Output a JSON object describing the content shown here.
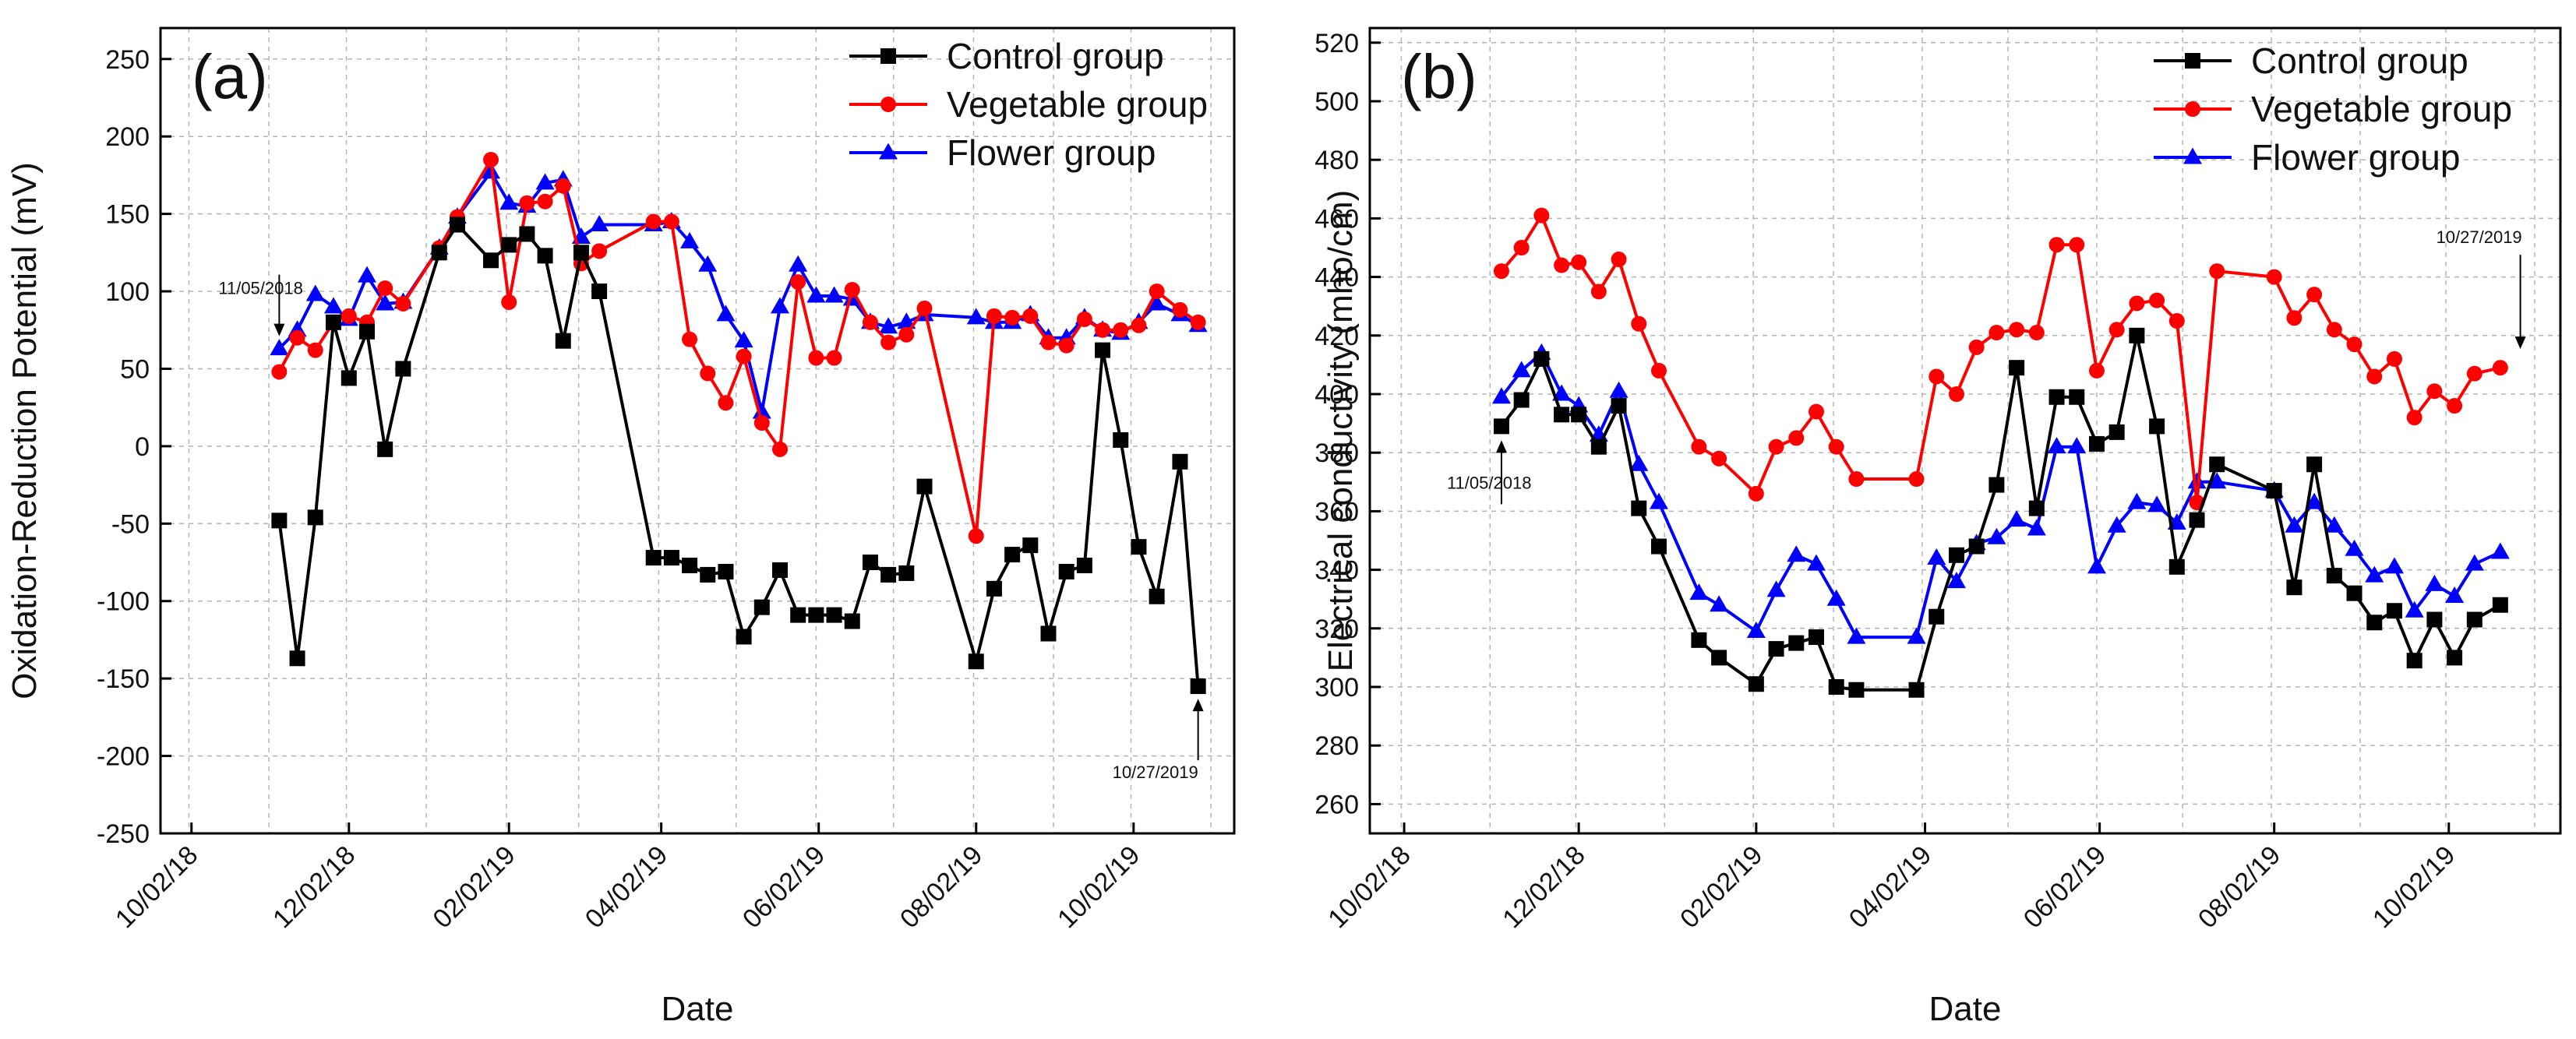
{
  "chart_data": [
    {
      "type": "line",
      "panel_label": "(a)",
      "xlabel": "Date",
      "ylabel": "Oxidation-Reduction Potential (mV)",
      "ylim": [
        -250,
        270
      ],
      "yticks": [
        -250,
        -200,
        -150,
        -100,
        -50,
        0,
        50,
        100,
        150,
        200,
        250
      ],
      "xlim": [
        "2018-09-20",
        "2019-11-10"
      ],
      "xticks": [
        {
          "date": "2018-10-02",
          "label": "10/02/18"
        },
        {
          "date": "2018-12-02",
          "label": "12/02/18"
        },
        {
          "date": "2019-02-02",
          "label": "02/02/19"
        },
        {
          "date": "2019-04-02",
          "label": "04/02/19"
        },
        {
          "date": "2019-06-02",
          "label": "06/02/19"
        },
        {
          "date": "2019-08-02",
          "label": "08/02/19"
        },
        {
          "date": "2019-10-02",
          "label": "10/02/19"
        }
      ],
      "grid": true,
      "legend_position": "top-right",
      "annotations": [
        {
          "text": "11/05/2018",
          "date": "2018-11-05",
          "y": 63
        },
        {
          "text": "10/27/2019",
          "date": "2019-10-27",
          "y": -155
        }
      ],
      "series": [
        {
          "name": "Control group",
          "color": "#000000",
          "marker": "square",
          "x": [
            "2018-11-05",
            "2018-11-12",
            "2018-11-19",
            "2018-11-26",
            "2018-12-02",
            "2018-12-09",
            "2018-12-16",
            "2018-12-23",
            "2019-01-06",
            "2019-01-13",
            "2019-01-26",
            "2019-02-02",
            "2019-02-09",
            "2019-02-16",
            "2019-02-23",
            "2019-03-02",
            "2019-03-09",
            "2019-03-30",
            "2019-04-06",
            "2019-04-13",
            "2019-04-20",
            "2019-04-27",
            "2019-05-04",
            "2019-05-11",
            "2019-05-18",
            "2019-05-25",
            "2019-06-01",
            "2019-06-08",
            "2019-06-15",
            "2019-06-22",
            "2019-06-29",
            "2019-07-06",
            "2019-07-13",
            "2019-08-02",
            "2019-08-09",
            "2019-08-16",
            "2019-08-23",
            "2019-08-30",
            "2019-09-06",
            "2019-09-13",
            "2019-09-20",
            "2019-09-27",
            "2019-10-04",
            "2019-10-11",
            "2019-10-20",
            "2019-10-27"
          ],
          "y": [
            -48,
            -137,
            -46,
            80,
            44,
            74,
            -2,
            50,
            125,
            143,
            120,
            130,
            137,
            123,
            68,
            125,
            100,
            -72,
            -72,
            -77,
            -83,
            -81,
            -123,
            -104,
            -80,
            -109,
            -109,
            -109,
            -113,
            -75,
            -83,
            -82,
            -26,
            -139,
            -92,
            -70,
            -64,
            -121,
            -81,
            -77,
            62,
            4,
            -65,
            -97,
            -10,
            -155
          ]
        },
        {
          "name": "Vegetable group",
          "color": "#ff0000",
          "marker": "circle",
          "x": [
            "2018-11-05",
            "2018-11-12",
            "2018-11-19",
            "2018-11-26",
            "2018-12-02",
            "2018-12-09",
            "2018-12-16",
            "2018-12-23",
            "2019-01-06",
            "2019-01-13",
            "2019-01-26",
            "2019-02-02",
            "2019-02-09",
            "2019-02-16",
            "2019-02-23",
            "2019-03-02",
            "2019-03-09",
            "2019-03-30",
            "2019-04-06",
            "2019-04-13",
            "2019-04-20",
            "2019-04-27",
            "2019-05-04",
            "2019-05-11",
            "2019-05-18",
            "2019-05-25",
            "2019-06-01",
            "2019-06-08",
            "2019-06-15",
            "2019-06-22",
            "2019-06-29",
            "2019-07-06",
            "2019-07-13",
            "2019-08-02",
            "2019-08-09",
            "2019-08-16",
            "2019-08-23",
            "2019-08-30",
            "2019-09-06",
            "2019-09-13",
            "2019-09-20",
            "2019-09-27",
            "2019-10-04",
            "2019-10-11",
            "2019-10-20",
            "2019-10-27"
          ],
          "y": [
            48,
            70,
            62,
            80,
            84,
            80,
            102,
            92,
            128,
            148,
            185,
            93,
            157,
            158,
            168,
            118,
            126,
            145,
            145,
            69,
            47,
            28,
            58,
            15,
            -2,
            106,
            57,
            57,
            101,
            80,
            67,
            72,
            89,
            -58,
            84,
            83,
            84,
            67,
            65,
            82,
            75,
            75,
            78,
            100,
            88,
            80
          ]
        },
        {
          "name": "Flower group",
          "color": "#0000ff",
          "marker": "triangle",
          "x": [
            "2018-11-05",
            "2018-11-12",
            "2018-11-19",
            "2018-11-26",
            "2018-12-02",
            "2018-12-09",
            "2018-12-16",
            "2018-12-23",
            "2019-01-06",
            "2019-01-13",
            "2019-01-26",
            "2019-02-02",
            "2019-02-09",
            "2019-02-16",
            "2019-02-23",
            "2019-03-02",
            "2019-03-09",
            "2019-03-30",
            "2019-04-06",
            "2019-04-13",
            "2019-04-20",
            "2019-04-27",
            "2019-05-04",
            "2019-05-11",
            "2019-05-18",
            "2019-05-25",
            "2019-06-01",
            "2019-06-08",
            "2019-06-15",
            "2019-06-22",
            "2019-06-29",
            "2019-07-06",
            "2019-07-13",
            "2019-08-02",
            "2019-08-09",
            "2019-08-16",
            "2019-08-23",
            "2019-08-30",
            "2019-09-06",
            "2019-09-13",
            "2019-09-20",
            "2019-09-27",
            "2019-10-04",
            "2019-10-11",
            "2019-10-20",
            "2019-10-27"
          ],
          "y": [
            63,
            75,
            98,
            90,
            82,
            110,
            92,
            93,
            128,
            148,
            177,
            157,
            155,
            170,
            172,
            135,
            143,
            143,
            145,
            132,
            117,
            85,
            68,
            22,
            90,
            117,
            97,
            97,
            95,
            80,
            77,
            80,
            85,
            83,
            80,
            80,
            85,
            70,
            70,
            83,
            75,
            73,
            80,
            92,
            85,
            78
          ]
        }
      ]
    },
    {
      "type": "line",
      "panel_label": "(b)",
      "xlabel": "Date",
      "ylabel": "Electrical conductivity (mho/cm)",
      "ylim": [
        250,
        525
      ],
      "yticks": [
        260,
        280,
        300,
        320,
        340,
        360,
        380,
        400,
        420,
        440,
        460,
        480,
        500,
        520
      ],
      "xlim": [
        "2018-09-20",
        "2019-11-10"
      ],
      "xticks": [
        {
          "date": "2018-10-02",
          "label": "10/02/18"
        },
        {
          "date": "2018-12-02",
          "label": "12/02/18"
        },
        {
          "date": "2019-02-02",
          "label": "02/02/19"
        },
        {
          "date": "2019-04-02",
          "label": "04/02/19"
        },
        {
          "date": "2019-06-02",
          "label": "06/02/19"
        },
        {
          "date": "2019-08-02",
          "label": "08/02/19"
        },
        {
          "date": "2019-10-02",
          "label": "10/02/19"
        }
      ],
      "grid": true,
      "legend_position": "top-right",
      "annotations": [
        {
          "text": "11/05/2018",
          "date": "2018-11-05",
          "y": 389
        },
        {
          "text": "10/27/2019",
          "date": "2019-10-27",
          "y": 409
        }
      ],
      "series": [
        {
          "name": "Control group",
          "color": "#000000",
          "marker": "square",
          "x": [
            "2018-11-05",
            "2018-11-12",
            "2018-11-19",
            "2018-11-26",
            "2018-12-02",
            "2018-12-09",
            "2018-12-16",
            "2018-12-23",
            "2018-12-30",
            "2019-01-13",
            "2019-01-20",
            "2019-02-02",
            "2019-02-09",
            "2019-02-16",
            "2019-02-23",
            "2019-03-02",
            "2019-03-09",
            "2019-03-30",
            "2019-04-06",
            "2019-04-13",
            "2019-04-20",
            "2019-04-27",
            "2019-05-04",
            "2019-05-11",
            "2019-05-18",
            "2019-05-25",
            "2019-06-01",
            "2019-06-08",
            "2019-06-15",
            "2019-06-22",
            "2019-06-29",
            "2019-07-06",
            "2019-07-13",
            "2019-08-02",
            "2019-08-09",
            "2019-08-16",
            "2019-08-23",
            "2019-08-30",
            "2019-09-06",
            "2019-09-13",
            "2019-09-20",
            "2019-09-27",
            "2019-10-04",
            "2019-10-11",
            "2019-10-20"
          ],
          "y": [
            389,
            398,
            412,
            393,
            393,
            382,
            396,
            361,
            348,
            316,
            310,
            301,
            313,
            315,
            317,
            300,
            299,
            299,
            324,
            345,
            348,
            369,
            409,
            361,
            399,
            399,
            383,
            387,
            420,
            389,
            341,
            357,
            376,
            367,
            334,
            376,
            338,
            332,
            322,
            326,
            309,
            323,
            310,
            323,
            328
          ]
        },
        {
          "name": "Vegetable group",
          "color": "#ff0000",
          "marker": "circle",
          "x": [
            "2018-11-05",
            "2018-11-12",
            "2018-11-19",
            "2018-11-26",
            "2018-12-02",
            "2018-12-09",
            "2018-12-16",
            "2018-12-23",
            "2018-12-30",
            "2019-01-13",
            "2019-01-20",
            "2019-02-02",
            "2019-02-09",
            "2019-02-16",
            "2019-02-23",
            "2019-03-02",
            "2019-03-09",
            "2019-03-30",
            "2019-04-06",
            "2019-04-13",
            "2019-04-20",
            "2019-04-27",
            "2019-05-04",
            "2019-05-11",
            "2019-05-18",
            "2019-05-25",
            "2019-06-01",
            "2019-06-08",
            "2019-06-15",
            "2019-06-22",
            "2019-06-29",
            "2019-07-06",
            "2019-07-13",
            "2019-08-02",
            "2019-08-09",
            "2019-08-16",
            "2019-08-23",
            "2019-08-30",
            "2019-09-06",
            "2019-09-13",
            "2019-09-20",
            "2019-09-27",
            "2019-10-04",
            "2019-10-11",
            "2019-10-20"
          ],
          "y": [
            442,
            450,
            461,
            444,
            445,
            435,
            446,
            424,
            408,
            382,
            378,
            366,
            382,
            385,
            394,
            382,
            371,
            371,
            406,
            400,
            416,
            421,
            422,
            421,
            451,
            451,
            408,
            422,
            431,
            432,
            425,
            363,
            442,
            440,
            426,
            434,
            422,
            417,
            406,
            412,
            392,
            401,
            396,
            407,
            409
          ]
        },
        {
          "name": "Flower group",
          "color": "#0000ff",
          "marker": "triangle",
          "x": [
            "2018-11-05",
            "2018-11-12",
            "2018-11-19",
            "2018-11-26",
            "2018-12-02",
            "2018-12-09",
            "2018-12-16",
            "2018-12-23",
            "2018-12-30",
            "2019-01-13",
            "2019-01-20",
            "2019-02-02",
            "2019-02-09",
            "2019-02-16",
            "2019-02-23",
            "2019-03-02",
            "2019-03-09",
            "2019-03-30",
            "2019-04-06",
            "2019-04-13",
            "2019-04-20",
            "2019-04-27",
            "2019-05-04",
            "2019-05-11",
            "2019-05-18",
            "2019-05-25",
            "2019-06-01",
            "2019-06-08",
            "2019-06-15",
            "2019-06-22",
            "2019-06-29",
            "2019-07-06",
            "2019-07-13",
            "2019-08-02",
            "2019-08-09",
            "2019-08-16",
            "2019-08-23",
            "2019-08-30",
            "2019-09-06",
            "2019-09-13",
            "2019-09-20",
            "2019-09-27",
            "2019-10-04",
            "2019-10-11",
            "2019-10-20"
          ],
          "y": [
            399,
            408,
            414,
            400,
            396,
            386,
            401,
            376,
            363,
            332,
            328,
            319,
            333,
            345,
            342,
            330,
            317,
            317,
            344,
            336,
            349,
            351,
            357,
            354,
            382,
            382,
            341,
            355,
            363,
            362,
            356,
            370,
            370,
            367,
            355,
            363,
            355,
            347,
            338,
            341,
            326,
            335,
            331,
            342,
            346
          ]
        }
      ]
    }
  ]
}
